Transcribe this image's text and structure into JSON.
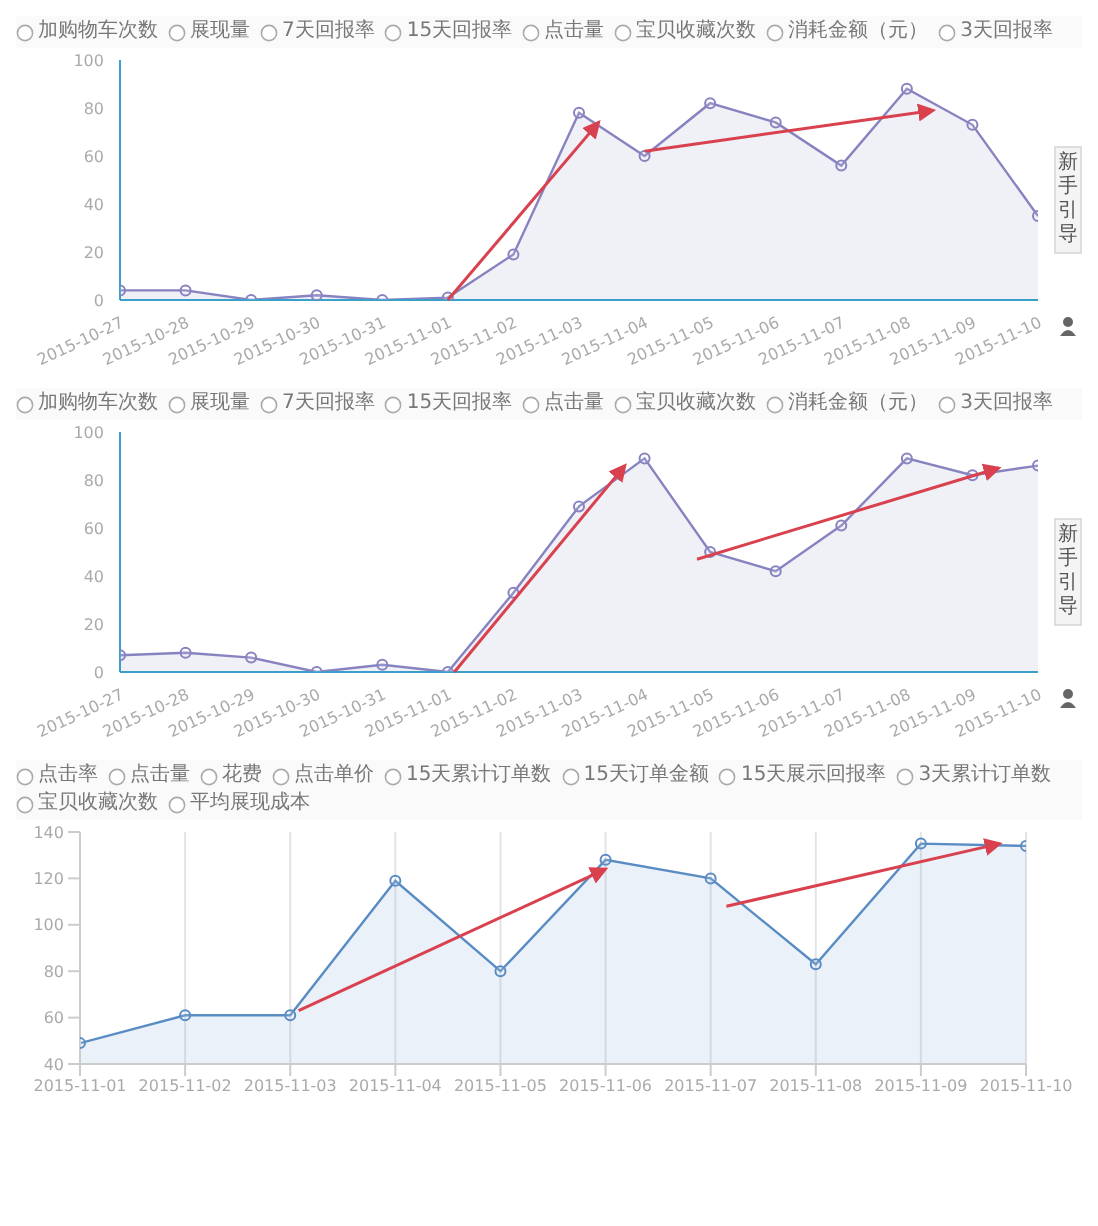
{
  "chart_data": [
    {
      "type": "area",
      "categories": [
        "2015-10-27",
        "2015-10-28",
        "2015-10-29",
        "2015-10-30",
        "2015-10-31",
        "2015-11-01",
        "2015-11-02",
        "2015-11-03",
        "2015-11-04",
        "2015-11-05",
        "2015-11-06",
        "2015-11-07",
        "2015-11-08",
        "2015-11-09",
        "2015-11-10"
      ],
      "series": [
        {
          "color": "#8783c0",
          "values": [
            4,
            4,
            0,
            2,
            0,
            1,
            19,
            78,
            60,
            82,
            74,
            56,
            88,
            73,
            35
          ]
        }
      ],
      "ylim": [
        0,
        100
      ],
      "yticks": [
        0,
        20,
        40,
        60,
        80,
        100
      ],
      "marker": "circle",
      "annotations": [
        "加购物车次数",
        "展现量",
        "7天回报率",
        "15天回报率",
        "点击量",
        "宝贝收藏次数",
        "消耗金额（元）",
        "3天回报率",
        "新手引导"
      ]
    },
    {
      "type": "area",
      "categories": [
        "2015-10-27",
        "2015-10-28",
        "2015-10-29",
        "2015-10-30",
        "2015-10-31",
        "2015-11-01",
        "2015-11-02",
        "2015-11-03",
        "2015-11-04",
        "2015-11-05",
        "2015-11-06",
        "2015-11-07",
        "2015-11-08",
        "2015-11-09",
        "2015-11-10"
      ],
      "series": [
        {
          "color": "#8783c0",
          "values": [
            7,
            8,
            6,
            0,
            3,
            0,
            33,
            69,
            89,
            50,
            42,
            61,
            89,
            82,
            86
          ]
        }
      ],
      "ylim": [
        0,
        100
      ],
      "yticks": [
        0,
        20,
        40,
        60,
        80,
        100
      ],
      "marker": "circle",
      "annotations": [
        "加购物车次数",
        "展现量",
        "7天回报率",
        "15天回报率",
        "点击量",
        "宝贝收藏次数",
        "消耗金额（元）",
        "3天回报率",
        "新手引导"
      ]
    },
    {
      "type": "area",
      "categories": [
        "2015-11-01",
        "2015-11-02",
        "2015-11-03",
        "2015-11-04",
        "2015-11-05",
        "2015-11-06",
        "2015-11-07",
        "2015-11-08",
        "2015-11-09",
        "2015-11-10"
      ],
      "series": [
        {
          "color": "#5a8cc4",
          "values": [
            49,
            61,
            61,
            119,
            80,
            128,
            120,
            83,
            135,
            134
          ]
        }
      ],
      "ylim": [
        40,
        140
      ],
      "yticks": [
        40,
        60,
        80,
        100,
        120,
        140
      ],
      "marker": "circle",
      "grid": "x",
      "annotations": [
        "点击率",
        "点击量",
        "花费",
        "点击单价",
        "15天累计订单数",
        "15天订单金额",
        "15天展示回报率",
        "3天累计订单数",
        "宝贝收藏次数",
        "平均展现成本"
      ]
    }
  ]
}
